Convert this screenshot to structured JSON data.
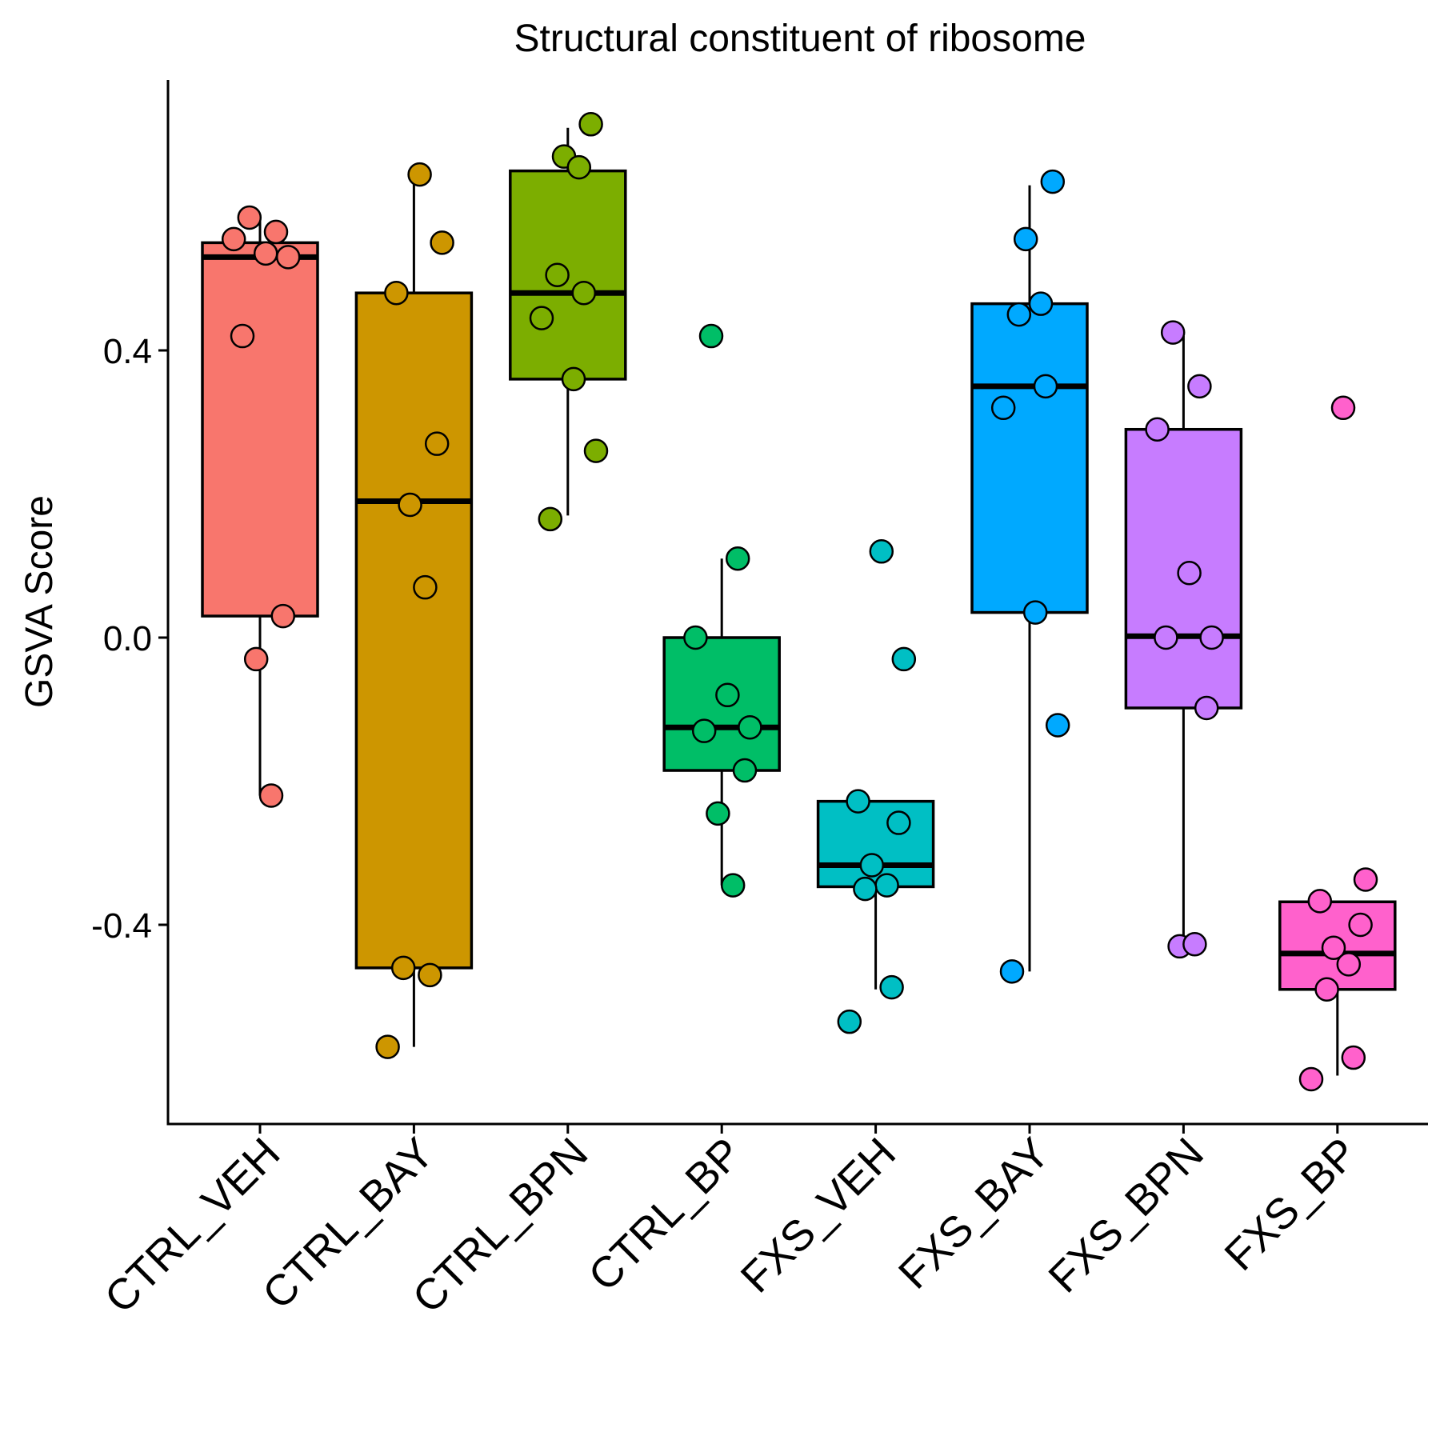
{
  "chart_data": {
    "type": "box",
    "title": "Structural constituent of ribosome",
    "xlabel": "",
    "ylabel": "GSVA Score",
    "ylim": [
      -0.68,
      0.78
    ],
    "yticks": [
      -0.4,
      0.0,
      0.4
    ],
    "ytick_labels": [
      "-0.4",
      "0.0",
      "0.4"
    ],
    "grid": false,
    "legend": "none",
    "categories": [
      "CTRL_VEH",
      "CTRL_BAY",
      "CTRL_BPN",
      "CTRL_BP",
      "FXS_VEH",
      "FXS_BAY",
      "FXS_BPN",
      "FXS_BP"
    ],
    "colors": [
      "#F8766D",
      "#CD9600",
      "#7CAE00",
      "#00BE67",
      "#00BFC4",
      "#00A9FF",
      "#C77CFF",
      "#FF61CC"
    ],
    "boxes": [
      {
        "name": "CTRL_VEH",
        "whisker_low": -0.22,
        "q1": 0.03,
        "median": 0.53,
        "q3": 0.55,
        "whisker_high": 0.59
      },
      {
        "name": "CTRL_BAY",
        "whisker_low": -0.57,
        "q1": -0.46,
        "median": 0.19,
        "q3": 0.48,
        "whisker_high": 0.64
      },
      {
        "name": "CTRL_BPN",
        "whisker_low": 0.17,
        "q1": 0.36,
        "median": 0.48,
        "q3": 0.65,
        "whisker_high": 0.71
      },
      {
        "name": "CTRL_BP",
        "whisker_low": -0.345,
        "q1": -0.185,
        "median": -0.125,
        "q3": 0.0,
        "whisker_high": 0.11
      },
      {
        "name": "FXS_VEH",
        "whisker_low": -0.49,
        "q1": -0.347,
        "median": -0.317,
        "q3": -0.228,
        "whisker_high": -0.228
      },
      {
        "name": "FXS_BAY",
        "whisker_low": -0.465,
        "q1": 0.035,
        "median": 0.35,
        "q3": 0.465,
        "whisker_high": 0.63
      },
      {
        "name": "FXS_BPN",
        "whisker_low": -0.425,
        "q1": -0.098,
        "median": 0.002,
        "q3": 0.29,
        "whisker_high": 0.42
      },
      {
        "name": "FXS_BP",
        "whisker_low": -0.61,
        "q1": -0.49,
        "median": -0.44,
        "q3": -0.368,
        "whisker_high": -0.368
      }
    ],
    "points": [
      {
        "category": "CTRL_VEH",
        "y": [
          0.585,
          0.565,
          0.555,
          0.535,
          0.53,
          0.42,
          0.03,
          -0.03,
          -0.22
        ]
      },
      {
        "category": "CTRL_BAY",
        "y": [
          0.645,
          0.55,
          0.48,
          0.27,
          0.185,
          0.07,
          -0.46,
          -0.47,
          -0.57
        ]
      },
      {
        "category": "CTRL_BPN",
        "y": [
          0.715,
          0.67,
          0.655,
          0.505,
          0.48,
          0.445,
          0.36,
          0.26,
          0.165
        ]
      },
      {
        "category": "CTRL_BP",
        "y": [
          0.42,
          0.11,
          0.0,
          -0.08,
          -0.125,
          -0.13,
          -0.185,
          -0.245,
          -0.345
        ]
      },
      {
        "category": "FXS_VEH",
        "y": [
          0.12,
          -0.03,
          -0.228,
          -0.258,
          -0.317,
          -0.345,
          -0.35,
          -0.487,
          -0.535
        ]
      },
      {
        "category": "FXS_BAY",
        "y": [
          0.635,
          0.555,
          0.465,
          0.45,
          0.35,
          0.32,
          0.035,
          -0.122,
          -0.465
        ]
      },
      {
        "category": "FXS_BPN",
        "y": [
          0.425,
          0.35,
          0.29,
          0.09,
          0.0,
          0.0,
          -0.098,
          -0.43,
          -0.427
        ]
      },
      {
        "category": "FXS_BP",
        "y": [
          0.32,
          -0.337,
          -0.367,
          -0.4,
          -0.432,
          -0.455,
          -0.49,
          -0.585,
          -0.615
        ]
      }
    ]
  }
}
